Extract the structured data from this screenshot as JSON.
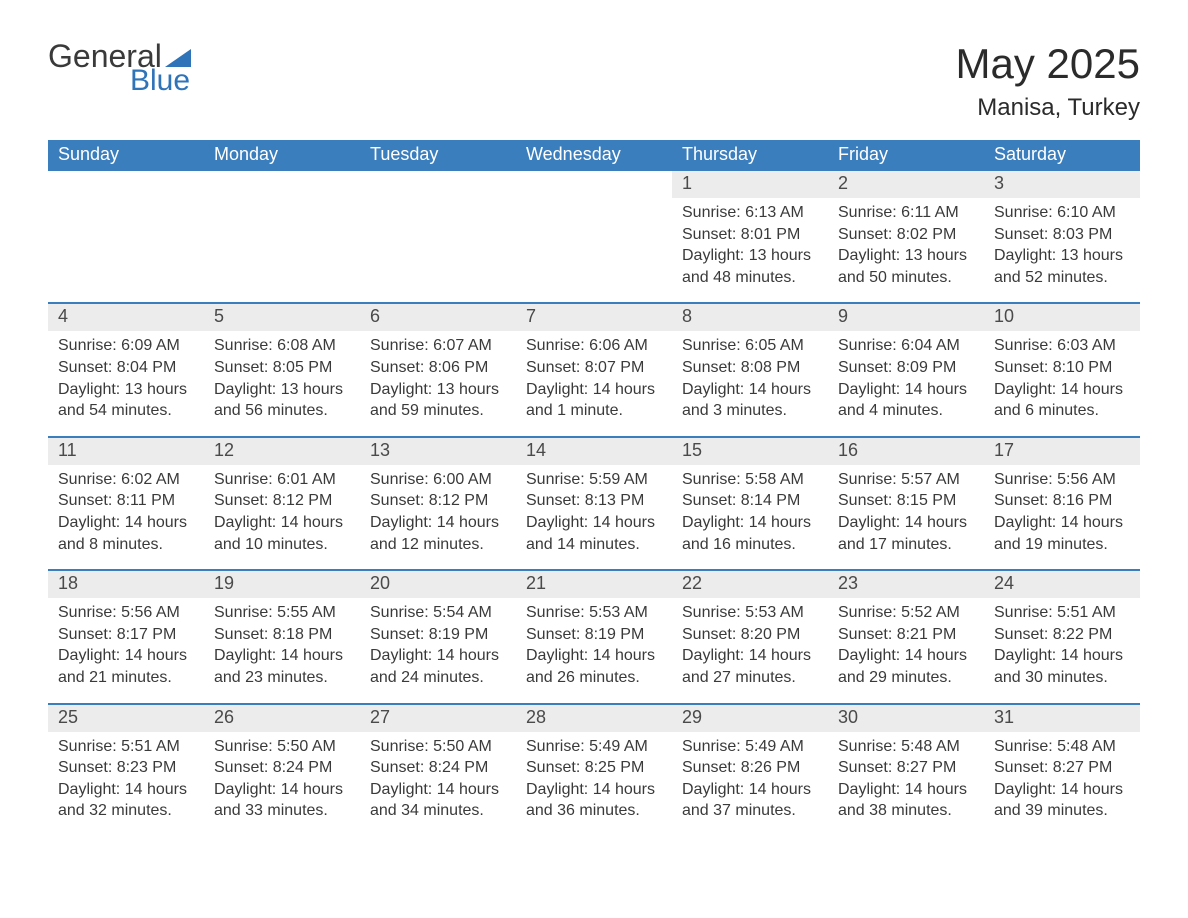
{
  "logo": {
    "word1": "General",
    "word2": "Blue"
  },
  "title": "May 2025",
  "location": "Manisa, Turkey",
  "colors": {
    "header_bg": "#3a7ebd",
    "header_text": "#ffffff",
    "date_bg": "#ececec",
    "week_divider": "#3a7ebd",
    "logo_gray": "#3a3a3a",
    "logo_blue": "#2f73b8",
    "body_text": "#3a3a3a"
  },
  "day_names": [
    "Sunday",
    "Monday",
    "Tuesday",
    "Wednesday",
    "Thursday",
    "Friday",
    "Saturday"
  ],
  "weeks": [
    {
      "days": [
        null,
        null,
        null,
        null,
        {
          "date": "1",
          "sunrise": "Sunrise: 6:13 AM",
          "sunset": "Sunset: 8:01 PM",
          "day1": "Daylight: 13 hours",
          "day2": "and 48 minutes."
        },
        {
          "date": "2",
          "sunrise": "Sunrise: 6:11 AM",
          "sunset": "Sunset: 8:02 PM",
          "day1": "Daylight: 13 hours",
          "day2": "and 50 minutes."
        },
        {
          "date": "3",
          "sunrise": "Sunrise: 6:10 AM",
          "sunset": "Sunset: 8:03 PM",
          "day1": "Daylight: 13 hours",
          "day2": "and 52 minutes."
        }
      ]
    },
    {
      "days": [
        {
          "date": "4",
          "sunrise": "Sunrise: 6:09 AM",
          "sunset": "Sunset: 8:04 PM",
          "day1": "Daylight: 13 hours",
          "day2": "and 54 minutes."
        },
        {
          "date": "5",
          "sunrise": "Sunrise: 6:08 AM",
          "sunset": "Sunset: 8:05 PM",
          "day1": "Daylight: 13 hours",
          "day2": "and 56 minutes."
        },
        {
          "date": "6",
          "sunrise": "Sunrise: 6:07 AM",
          "sunset": "Sunset: 8:06 PM",
          "day1": "Daylight: 13 hours",
          "day2": "and 59 minutes."
        },
        {
          "date": "7",
          "sunrise": "Sunrise: 6:06 AM",
          "sunset": "Sunset: 8:07 PM",
          "day1": "Daylight: 14 hours",
          "day2": "and 1 minute."
        },
        {
          "date": "8",
          "sunrise": "Sunrise: 6:05 AM",
          "sunset": "Sunset: 8:08 PM",
          "day1": "Daylight: 14 hours",
          "day2": "and 3 minutes."
        },
        {
          "date": "9",
          "sunrise": "Sunrise: 6:04 AM",
          "sunset": "Sunset: 8:09 PM",
          "day1": "Daylight: 14 hours",
          "day2": "and 4 minutes."
        },
        {
          "date": "10",
          "sunrise": "Sunrise: 6:03 AM",
          "sunset": "Sunset: 8:10 PM",
          "day1": "Daylight: 14 hours",
          "day2": "and 6 minutes."
        }
      ]
    },
    {
      "days": [
        {
          "date": "11",
          "sunrise": "Sunrise: 6:02 AM",
          "sunset": "Sunset: 8:11 PM",
          "day1": "Daylight: 14 hours",
          "day2": "and 8 minutes."
        },
        {
          "date": "12",
          "sunrise": "Sunrise: 6:01 AM",
          "sunset": "Sunset: 8:12 PM",
          "day1": "Daylight: 14 hours",
          "day2": "and 10 minutes."
        },
        {
          "date": "13",
          "sunrise": "Sunrise: 6:00 AM",
          "sunset": "Sunset: 8:12 PM",
          "day1": "Daylight: 14 hours",
          "day2": "and 12 minutes."
        },
        {
          "date": "14",
          "sunrise": "Sunrise: 5:59 AM",
          "sunset": "Sunset: 8:13 PM",
          "day1": "Daylight: 14 hours",
          "day2": "and 14 minutes."
        },
        {
          "date": "15",
          "sunrise": "Sunrise: 5:58 AM",
          "sunset": "Sunset: 8:14 PM",
          "day1": "Daylight: 14 hours",
          "day2": "and 16 minutes."
        },
        {
          "date": "16",
          "sunrise": "Sunrise: 5:57 AM",
          "sunset": "Sunset: 8:15 PM",
          "day1": "Daylight: 14 hours",
          "day2": "and 17 minutes."
        },
        {
          "date": "17",
          "sunrise": "Sunrise: 5:56 AM",
          "sunset": "Sunset: 8:16 PM",
          "day1": "Daylight: 14 hours",
          "day2": "and 19 minutes."
        }
      ]
    },
    {
      "days": [
        {
          "date": "18",
          "sunrise": "Sunrise: 5:56 AM",
          "sunset": "Sunset: 8:17 PM",
          "day1": "Daylight: 14 hours",
          "day2": "and 21 minutes."
        },
        {
          "date": "19",
          "sunrise": "Sunrise: 5:55 AM",
          "sunset": "Sunset: 8:18 PM",
          "day1": "Daylight: 14 hours",
          "day2": "and 23 minutes."
        },
        {
          "date": "20",
          "sunrise": "Sunrise: 5:54 AM",
          "sunset": "Sunset: 8:19 PM",
          "day1": "Daylight: 14 hours",
          "day2": "and 24 minutes."
        },
        {
          "date": "21",
          "sunrise": "Sunrise: 5:53 AM",
          "sunset": "Sunset: 8:19 PM",
          "day1": "Daylight: 14 hours",
          "day2": "and 26 minutes."
        },
        {
          "date": "22",
          "sunrise": "Sunrise: 5:53 AM",
          "sunset": "Sunset: 8:20 PM",
          "day1": "Daylight: 14 hours",
          "day2": "and 27 minutes."
        },
        {
          "date": "23",
          "sunrise": "Sunrise: 5:52 AM",
          "sunset": "Sunset: 8:21 PM",
          "day1": "Daylight: 14 hours",
          "day2": "and 29 minutes."
        },
        {
          "date": "24",
          "sunrise": "Sunrise: 5:51 AM",
          "sunset": "Sunset: 8:22 PM",
          "day1": "Daylight: 14 hours",
          "day2": "and 30 minutes."
        }
      ]
    },
    {
      "days": [
        {
          "date": "25",
          "sunrise": "Sunrise: 5:51 AM",
          "sunset": "Sunset: 8:23 PM",
          "day1": "Daylight: 14 hours",
          "day2": "and 32 minutes."
        },
        {
          "date": "26",
          "sunrise": "Sunrise: 5:50 AM",
          "sunset": "Sunset: 8:24 PM",
          "day1": "Daylight: 14 hours",
          "day2": "and 33 minutes."
        },
        {
          "date": "27",
          "sunrise": "Sunrise: 5:50 AM",
          "sunset": "Sunset: 8:24 PM",
          "day1": "Daylight: 14 hours",
          "day2": "and 34 minutes."
        },
        {
          "date": "28",
          "sunrise": "Sunrise: 5:49 AM",
          "sunset": "Sunset: 8:25 PM",
          "day1": "Daylight: 14 hours",
          "day2": "and 36 minutes."
        },
        {
          "date": "29",
          "sunrise": "Sunrise: 5:49 AM",
          "sunset": "Sunset: 8:26 PM",
          "day1": "Daylight: 14 hours",
          "day2": "and 37 minutes."
        },
        {
          "date": "30",
          "sunrise": "Sunrise: 5:48 AM",
          "sunset": "Sunset: 8:27 PM",
          "day1": "Daylight: 14 hours",
          "day2": "and 38 minutes."
        },
        {
          "date": "31",
          "sunrise": "Sunrise: 5:48 AM",
          "sunset": "Sunset: 8:27 PM",
          "day1": "Daylight: 14 hours",
          "day2": "and 39 minutes."
        }
      ]
    }
  ]
}
